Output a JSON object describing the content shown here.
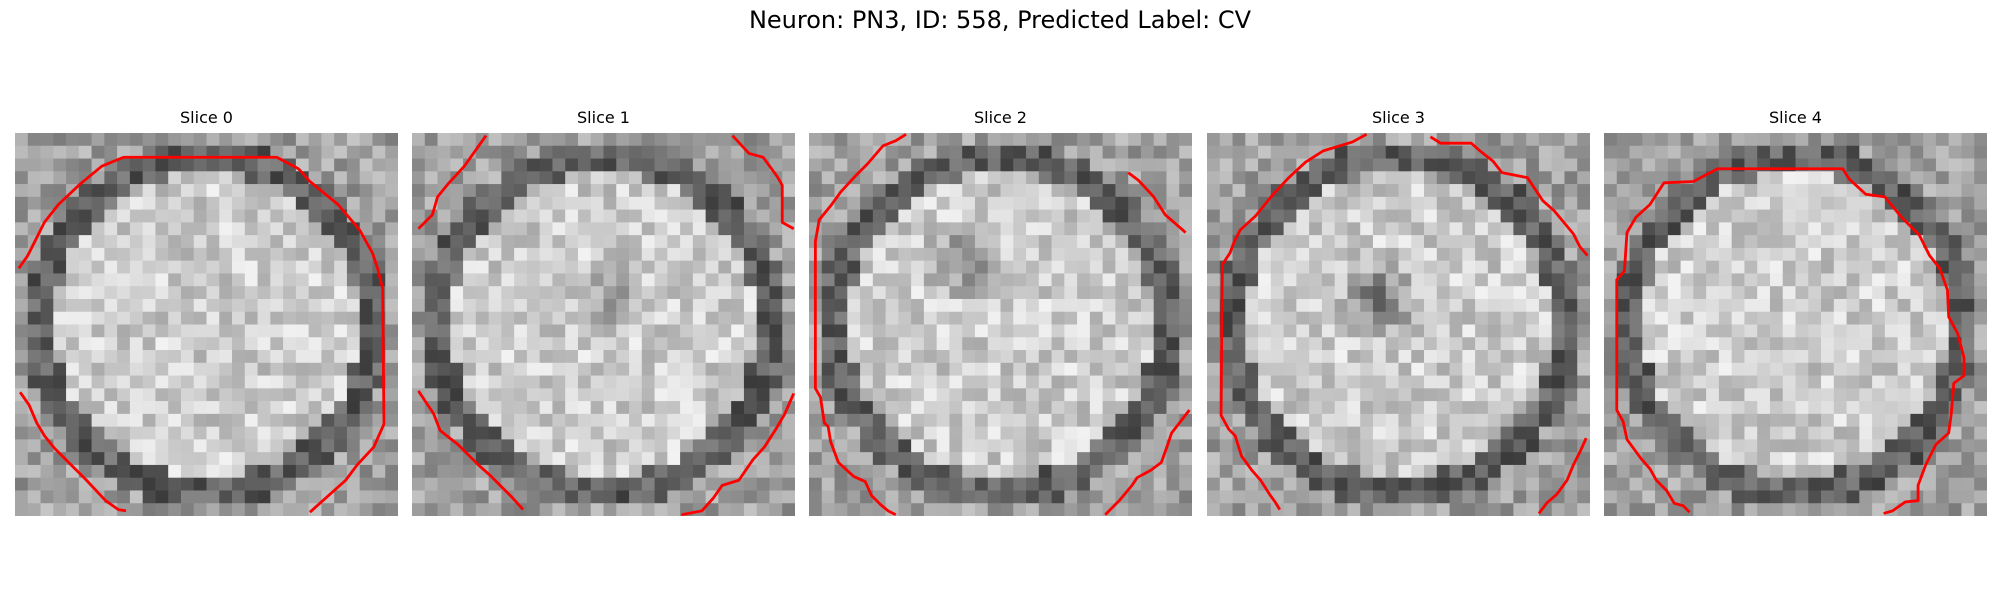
{
  "figure": {
    "title": "Neuron: PN3, ID: 558, Predicted Label: CV",
    "contour_color": "#ff0000",
    "colormap": "grayscale"
  },
  "slices": [
    {
      "label": "Slice 0"
    },
    {
      "label": "Slice 1"
    },
    {
      "label": "Slice 2"
    },
    {
      "label": "Slice 3"
    },
    {
      "label": "Slice 4"
    }
  ]
}
